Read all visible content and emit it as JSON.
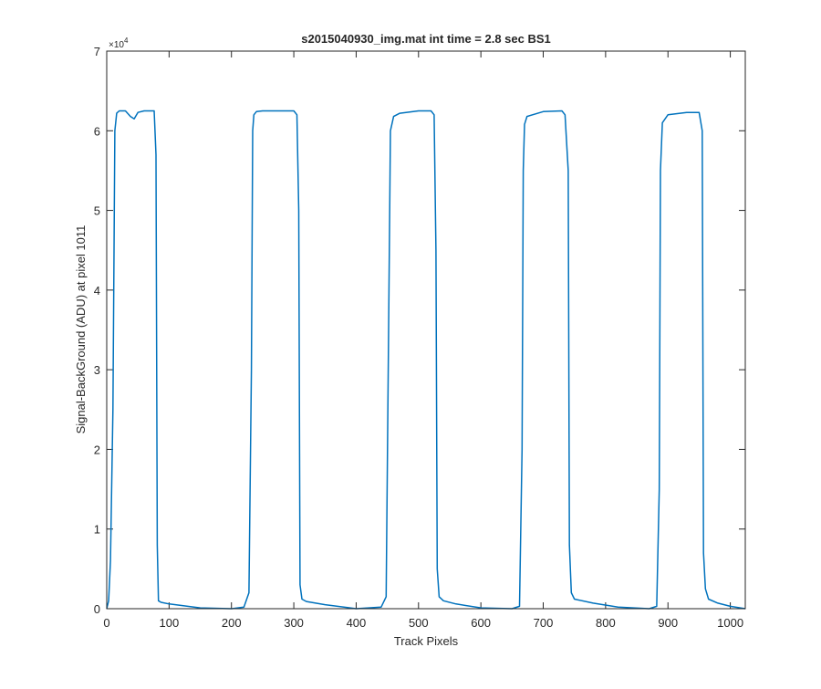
{
  "chart_data": {
    "type": "line",
    "title": "s2015040930_img.mat int time = 2.8 sec   BS1",
    "xlabel": "Track Pixels",
    "ylabel": "Signal-BackGround (ADU) at pixel 1011",
    "y_exponent_base": "×10",
    "y_exponent_power": "4",
    "xlim": [
      0,
      1024
    ],
    "ylim": [
      0,
      70000
    ],
    "xticks": [
      0,
      100,
      200,
      300,
      400,
      500,
      600,
      700,
      800,
      900,
      1000
    ],
    "xtick_labels": [
      "0",
      "100",
      "200",
      "300",
      "400",
      "500",
      "600",
      "700",
      "800",
      "900",
      "1000"
    ],
    "yticks": [
      0,
      10000,
      20000,
      30000,
      40000,
      50000,
      60000,
      70000
    ],
    "ytick_labels": [
      "0",
      "1",
      "2",
      "3",
      "4",
      "5",
      "6",
      "7"
    ],
    "grid": false,
    "line_color": "#0072BD",
    "series": [
      {
        "x": [
          0,
          3,
          6,
          10,
          13,
          16,
          20,
          30,
          38,
          44,
          50,
          60,
          70,
          76,
          79,
          81,
          83,
          87,
          100,
          150,
          200,
          220,
          228,
          232,
          234,
          236,
          240,
          250,
          280,
          300,
          305,
          308,
          310,
          313,
          320,
          350,
          400,
          440,
          448,
          452,
          455,
          460,
          470,
          500,
          520,
          525,
          528,
          530,
          533,
          540,
          560,
          600,
          650,
          662,
          666,
          668,
          670,
          674,
          700,
          730,
          735,
          740,
          742,
          745,
          750,
          780,
          820,
          870,
          882,
          886,
          888,
          891,
          900,
          930,
          950,
          955,
          957,
          960,
          965,
          980,
          1000,
          1024
        ],
        "y": [
          0,
          1000,
          6000,
          25000,
          60000,
          62200,
          62500,
          62500,
          61800,
          61500,
          62300,
          62500,
          62500,
          62500,
          57000,
          8000,
          1000,
          800,
          600,
          100,
          0,
          200,
          2000,
          30000,
          60000,
          62000,
          62400,
          62500,
          62500,
          62500,
          62000,
          50000,
          3000,
          1200,
          900,
          500,
          0,
          200,
          1500,
          35000,
          60000,
          61800,
          62200,
          62500,
          62500,
          62000,
          45000,
          5000,
          1500,
          1000,
          600,
          100,
          0,
          300,
          20000,
          55000,
          60800,
          61800,
          62400,
          62500,
          62000,
          55000,
          8000,
          2000,
          1200,
          700,
          200,
          0,
          300,
          15000,
          55000,
          61000,
          62000,
          62300,
          62300,
          60000,
          7000,
          2500,
          1200,
          700,
          300,
          0
        ]
      }
    ]
  }
}
